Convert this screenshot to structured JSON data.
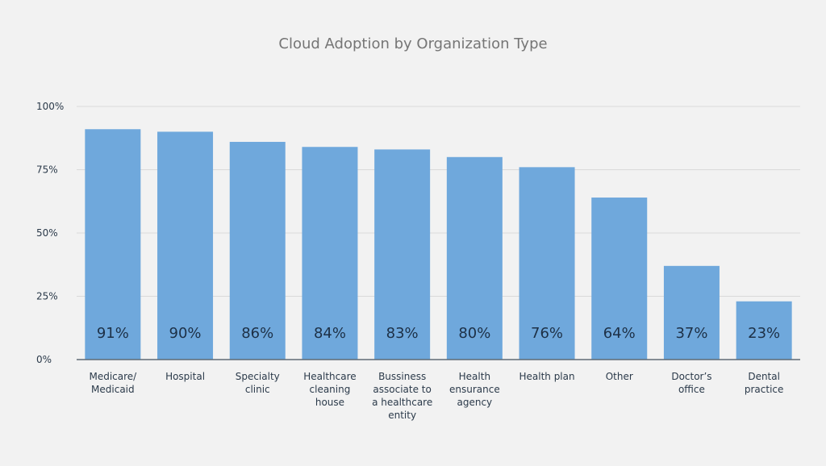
{
  "chart_data": {
    "type": "bar",
    "title": "Cloud Adoption by Organization Type",
    "xlabel": "",
    "ylabel": "",
    "ylim": [
      0,
      100
    ],
    "y_ticks": [
      "0%",
      "25%",
      "50%",
      "75%",
      "100%"
    ],
    "y_tick_values": [
      0,
      25,
      50,
      75,
      100
    ],
    "grid": true,
    "legend": "none",
    "bar_color": "#6fa8dc",
    "categories": [
      [
        "Medicare/",
        "Medicaid"
      ],
      [
        "Hospital"
      ],
      [
        "Specialty",
        "clinic"
      ],
      [
        "Healthcare",
        "cleaning",
        "house"
      ],
      [
        "Bussiness",
        "associate to",
        "a healthcare",
        "entity"
      ],
      [
        "Health",
        "ensurance",
        "agency"
      ],
      [
        "Health plan"
      ],
      [
        "Other"
      ],
      [
        "Doctor’s",
        "office"
      ],
      [
        "Dental",
        "practice"
      ]
    ],
    "values": [
      91,
      90,
      86,
      84,
      83,
      80,
      76,
      64,
      37,
      23
    ],
    "data_labels": [
      "91%",
      "90%",
      "86%",
      "84%",
      "83%",
      "80%",
      "76%",
      "64%",
      "37%",
      "23%"
    ]
  }
}
